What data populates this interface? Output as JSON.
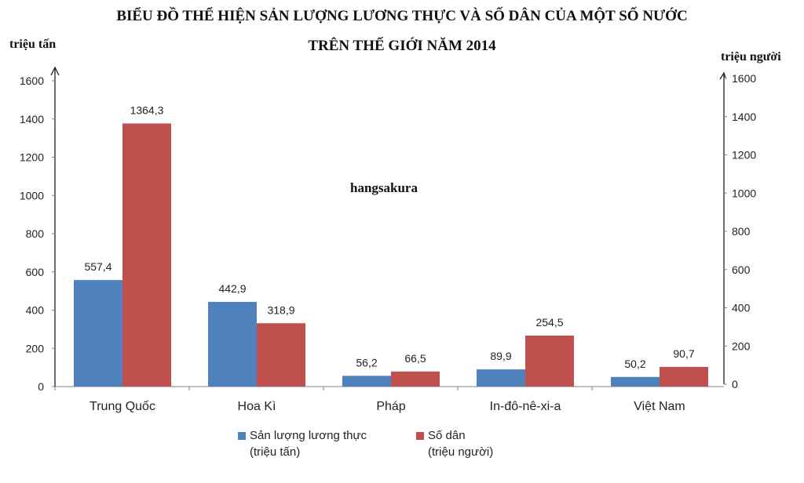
{
  "title_line1": "BIỂU ĐỒ THỂ HIỆN SẢN LƯỢNG LƯƠNG THỰC VÀ SỐ DÂN CỦA MỘT SỐ NƯỚC",
  "title_line2": "TRÊN THẾ GIỚI NĂM 2014",
  "left_unit": "triệu tấn",
  "right_unit": "triệu người",
  "watermark": "hangsakura",
  "colors": {
    "series1": "#4f81bd",
    "series2": "#c0504d"
  },
  "legend": [
    {
      "line1": "Sản lượng lương thực",
      "line2": "(triệu tấn)"
    },
    {
      "line1": "Số dân",
      "line2": "(triệu người)"
    }
  ],
  "chart_data": {
    "type": "bar",
    "categories": [
      "Trung  Quốc",
      "Hoa Kì",
      "Pháp",
      "In-đô-nê-xi-a",
      "Việt Nam"
    ],
    "series": [
      {
        "name": "Sản lượng lương thực (triệu tấn)",
        "axis": "left",
        "values": [
          557.4,
          442.9,
          56.2,
          89.9,
          50.2
        ],
        "labels": [
          "557,4",
          "442,9",
          "56,2",
          "89,9",
          "50,2"
        ]
      },
      {
        "name": "Số dân (triệu người)",
        "axis": "right",
        "values": [
          1364.3,
          318.9,
          66.5,
          254.5,
          90.7
        ],
        "labels": [
          "1364,3",
          "318,9",
          "66,5",
          "254,5",
          "90,7"
        ]
      }
    ],
    "left_axis": {
      "ylim": [
        0,
        1600
      ],
      "ticks": [
        "0",
        "200",
        "400",
        "600",
        "800",
        "1000",
        "1200",
        "1400",
        "1600"
      ]
    },
    "right_axis": {
      "ylim": [
        0,
        1600
      ],
      "ticks": [
        "0",
        "200",
        "400",
        "600",
        "800",
        "1000",
        "1200",
        "1400",
        "1600"
      ]
    },
    "grid": false,
    "legend_position": "bottom"
  }
}
